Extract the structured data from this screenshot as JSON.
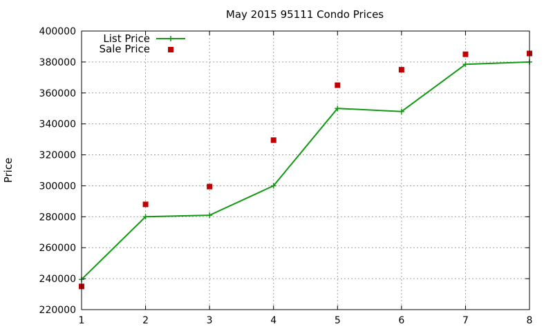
{
  "chart_data": {
    "type": "line",
    "title": "May 2015 95111 Condo Prices",
    "xlabel": "",
    "ylabel": "Price",
    "x": [
      1,
      2,
      3,
      4,
      5,
      6,
      7,
      8
    ],
    "xlim": [
      1,
      8
    ],
    "ylim": [
      220000,
      400000
    ],
    "x_ticks": [
      "1",
      "2",
      "3",
      "4",
      "5",
      "6",
      "7",
      "8"
    ],
    "y_ticks": [
      "220000",
      "240000",
      "260000",
      "280000",
      "300000",
      "320000",
      "340000",
      "360000",
      "380000",
      "400000"
    ],
    "grid": true,
    "legend_position": "top-left",
    "series": [
      {
        "name": "List Price",
        "style": "line-with-plus-markers",
        "color": "#119911",
        "values": [
          239500,
          280000,
          281000,
          300000,
          350000,
          348000,
          378500,
          380000
        ]
      },
      {
        "name": "Sale Price",
        "style": "square-markers",
        "color": "#c00000",
        "values": [
          235000,
          288000,
          299500,
          329500,
          365000,
          375000,
          385000,
          385500
        ]
      }
    ]
  }
}
